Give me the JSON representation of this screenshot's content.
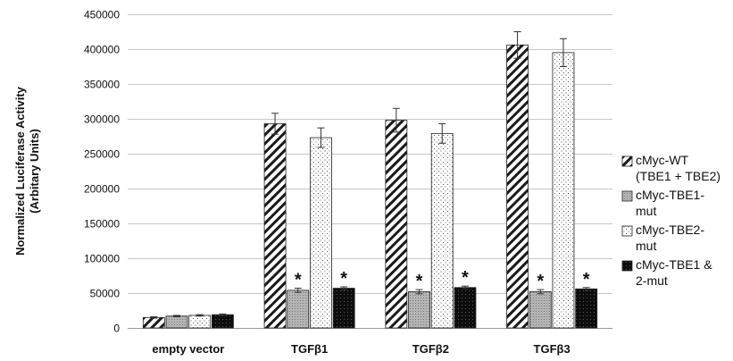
{
  "chart_data": {
    "type": "bar",
    "ylabel_lines": [
      "Normalized Luciferase Activity",
      "(Arbitary Units)"
    ],
    "ylim": [
      0,
      450000
    ],
    "yticks": [
      0,
      50000,
      100000,
      150000,
      200000,
      250000,
      300000,
      350000,
      400000,
      450000
    ],
    "grid": "horizontal",
    "legend_position": "right",
    "categories": [
      "empty vector",
      "TGFβ1",
      "TGFβ2",
      "TGFβ3"
    ],
    "series": [
      {
        "name": "cMyc-WT (TBE1 + TBE2)",
        "legend_lines": [
          "cMyc-WT",
          "(TBE1 + TBE2)"
        ],
        "pattern": "diagonal-hatch",
        "values": [
          15000,
          293000,
          298000,
          406000
        ],
        "errors": [
          1000,
          15000,
          17000,
          19000
        ],
        "markers": [
          "",
          "",
          "",
          ""
        ]
      },
      {
        "name": "cMyc-TBE1-mut",
        "legend_lines": [
          "cMyc-TBE1-",
          "mut"
        ],
        "pattern": "gray-dots",
        "values": [
          17000,
          54000,
          52000,
          52000
        ],
        "errors": [
          1000,
          3000,
          3000,
          3000
        ],
        "markers": [
          "",
          "*",
          "*",
          "*"
        ]
      },
      {
        "name": "cMyc-TBE2-mut",
        "legend_lines": [
          "cMyc-TBE2-",
          "mut"
        ],
        "pattern": "white-dots",
        "values": [
          18000,
          273000,
          279000,
          395000
        ],
        "errors": [
          1000,
          14000,
          14000,
          20000
        ],
        "markers": [
          "",
          "",
          "",
          ""
        ]
      },
      {
        "name": "cMyc-TBE1 & 2-mut",
        "legend_lines": [
          "cMyc-TBE1 &",
          "2-mut"
        ],
        "pattern": "black-dots",
        "values": [
          19000,
          57000,
          58000,
          56000
        ],
        "errors": [
          1000,
          2000,
          2000,
          2000
        ],
        "markers": [
          "",
          "*",
          "*",
          "*"
        ]
      }
    ]
  }
}
